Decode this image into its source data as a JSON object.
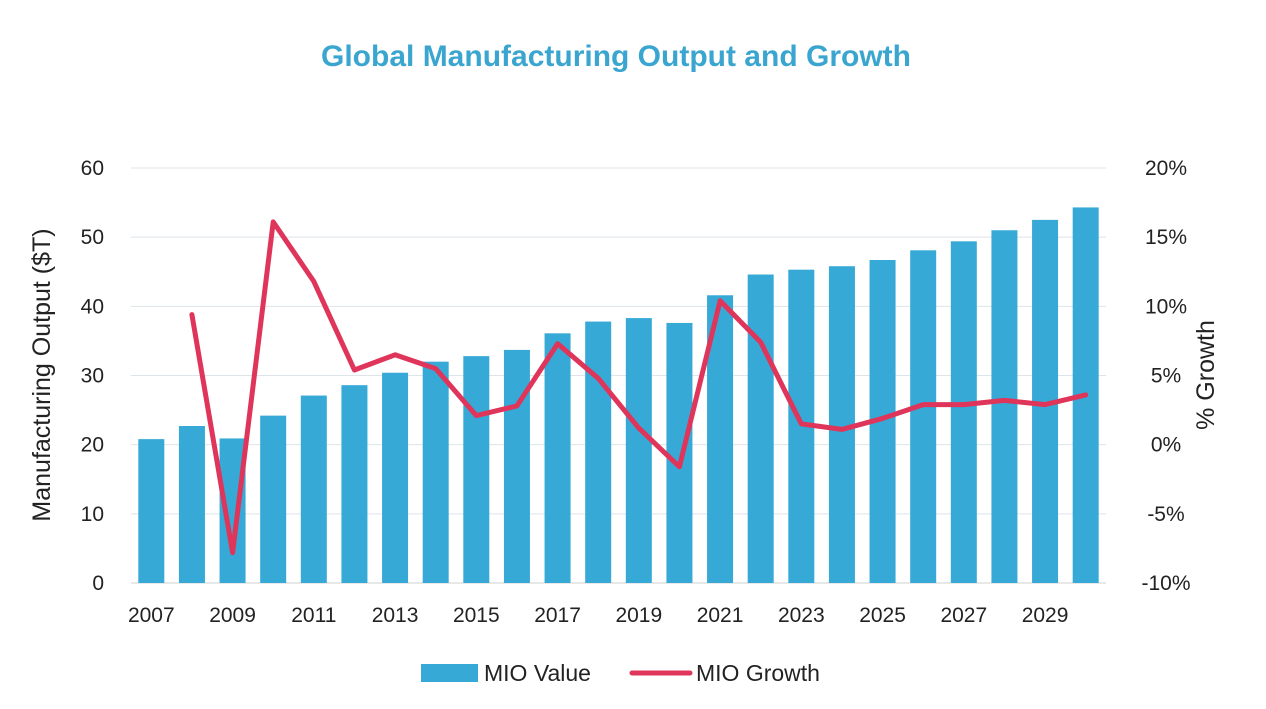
{
  "chart_data": {
    "type": "bar+line",
    "title": "Global Manufacturing Output and Growth",
    "xlabel": "",
    "ylabel": "Manufacturing Output ($T)",
    "y2label": "% Growth",
    "categories": [
      "2007",
      "2008",
      "2009",
      "2010",
      "2011",
      "2012",
      "2013",
      "2014",
      "2015",
      "2016",
      "2017",
      "2018",
      "2019",
      "2020",
      "2021",
      "2022",
      "2023",
      "2024",
      "2025",
      "2026",
      "2027",
      "2028",
      "2029",
      "2030"
    ],
    "x_tick_labels": [
      "2007",
      "2009",
      "2011",
      "2013",
      "2015",
      "2017",
      "2019",
      "2021",
      "2023",
      "2025",
      "2027",
      "2029"
    ],
    "ylim": [
      0,
      60
    ],
    "y_ticks": [
      "0",
      "10",
      "20",
      "30",
      "40",
      "50",
      "60"
    ],
    "y2lim": [
      -10,
      20
    ],
    "y2_ticks": [
      "-10%",
      "-5%",
      "0%",
      "5%",
      "10%",
      "15%",
      "20%"
    ],
    "grid": true,
    "legend_position": "bottom",
    "series": [
      {
        "name": "MIO Value",
        "type": "bar",
        "axis": "left",
        "color": "#36a9d6",
        "values": [
          20.8,
          22.7,
          20.9,
          24.2,
          27.1,
          28.6,
          30.4,
          32.0,
          32.8,
          33.7,
          36.1,
          37.8,
          38.3,
          37.6,
          41.6,
          44.6,
          45.3,
          45.8,
          46.7,
          48.1,
          49.4,
          51.0,
          52.5,
          54.3
        ]
      },
      {
        "name": "MIO Growth",
        "type": "line",
        "axis": "right",
        "color": "#e0355a",
        "values": [
          null,
          9.4,
          -7.8,
          16.1,
          11.8,
          5.4,
          6.5,
          5.5,
          2.1,
          2.8,
          7.3,
          4.8,
          1.2,
          -1.6,
          10.4,
          7.4,
          1.5,
          1.1,
          1.9,
          2.9,
          2.9,
          3.2,
          2.9,
          3.6
        ]
      }
    ]
  }
}
